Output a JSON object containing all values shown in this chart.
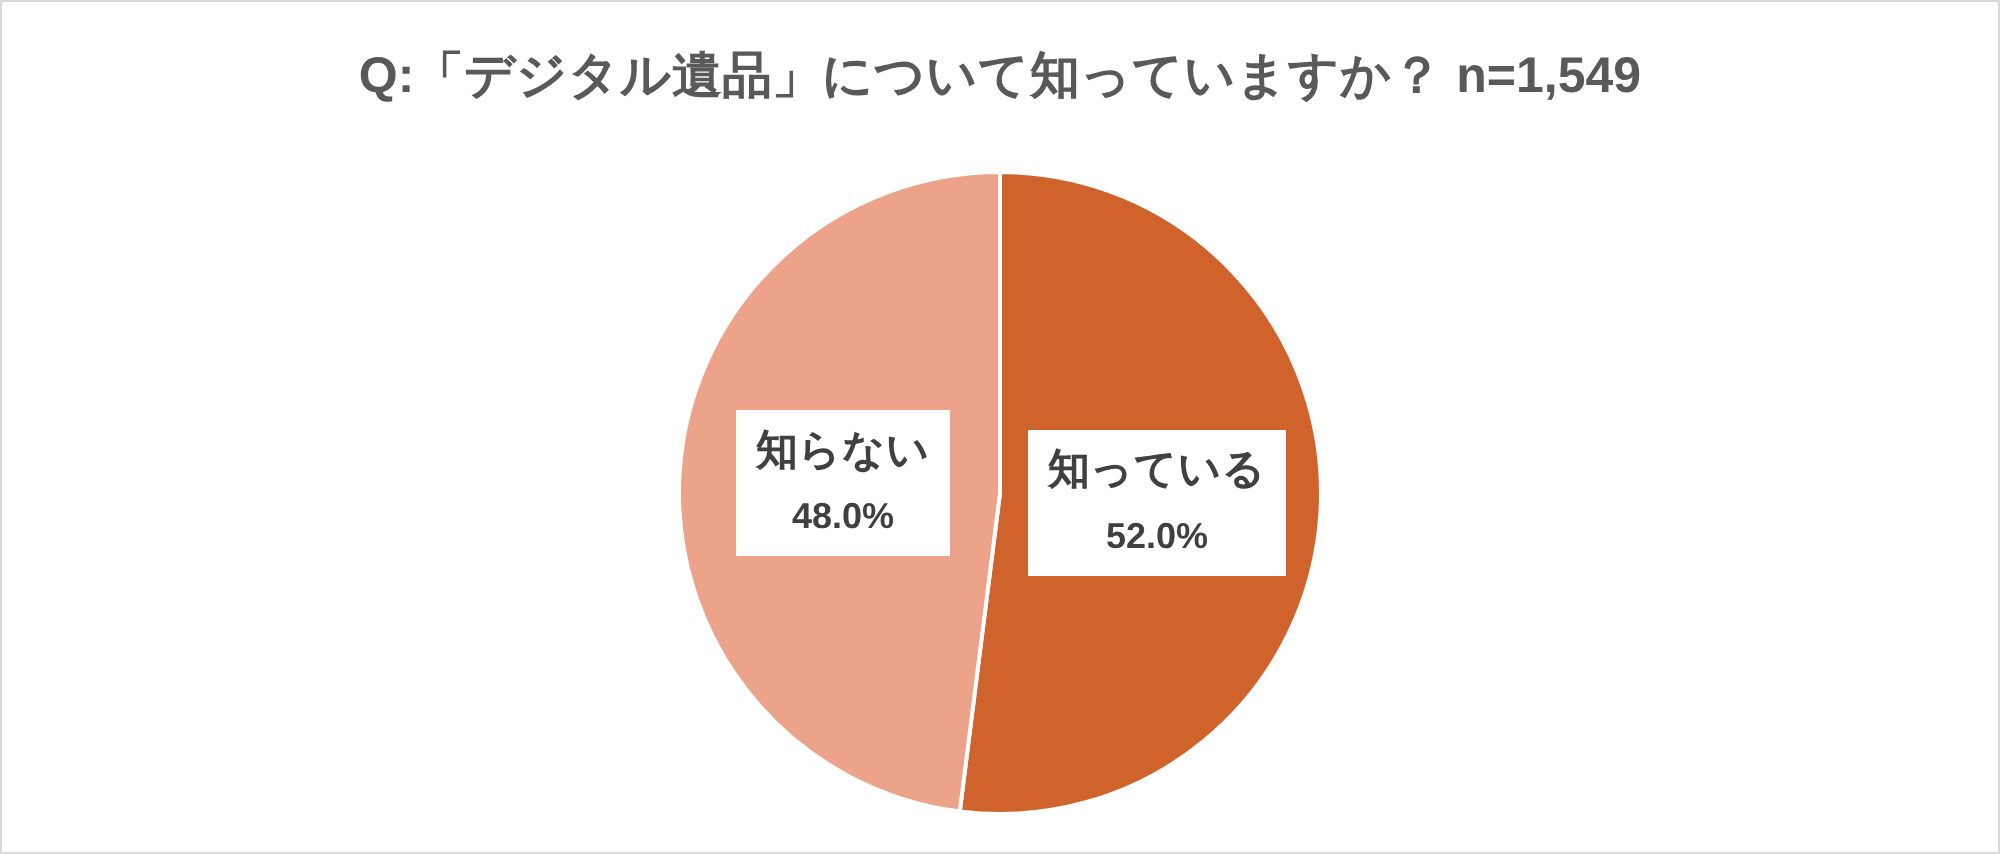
{
  "chart_data": {
    "type": "pie",
    "title": "Q:「デジタル遺品」について知っていますか？ n=1,549",
    "categories": [
      "知っている",
      "知らない"
    ],
    "values": [
      52.0,
      48.0
    ],
    "colors": [
      "#d0632b",
      "#eda28a"
    ],
    "value_labels": [
      "52.0%",
      "48.0%"
    ]
  }
}
